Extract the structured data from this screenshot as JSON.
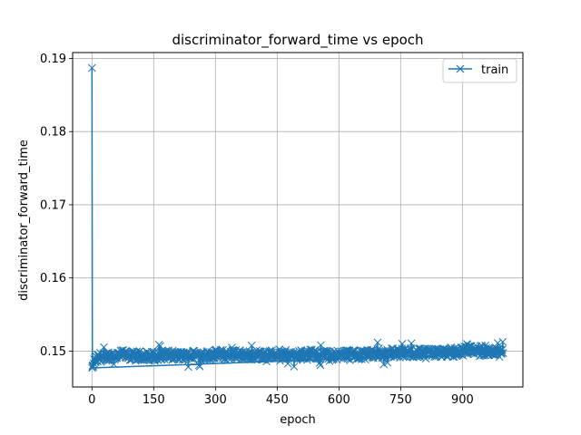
{
  "chart_data": {
    "type": "line",
    "title": "discriminator_forward_time vs epoch",
    "xlabel": "epoch",
    "ylabel": "discriminator_forward_time",
    "xlim": [
      -47,
      1047
    ],
    "ylim": [
      0.1451,
      0.1908
    ],
    "xticks": [
      0,
      150,
      300,
      450,
      600,
      750,
      900
    ],
    "yticks": [
      0.15,
      0.16,
      0.17,
      0.18,
      0.19
    ],
    "ytick_labels": [
      "0.15",
      "0.16",
      "0.17",
      "0.18",
      "0.19"
    ],
    "grid": true,
    "legend": {
      "position": "top-right",
      "entries": [
        "train"
      ]
    },
    "colors": {
      "train": "#1f77b4"
    },
    "series": [
      {
        "name": "train",
        "marker": "x",
        "x": [
          0,
          1,
          2,
          3,
          4,
          5,
          10,
          20,
          30,
          40,
          50,
          75,
          100,
          125,
          150,
          175,
          200,
          225,
          250,
          275,
          300,
          325,
          350,
          375,
          400,
          425,
          450,
          475,
          500,
          525,
          550,
          575,
          600,
          625,
          650,
          675,
          700,
          725,
          750,
          775,
          800,
          825,
          850,
          875,
          900,
          925,
          950,
          975,
          999
        ],
        "y": [
          0.1487,
          0.1477,
          0.1474,
          0.1483,
          0.1479,
          0.1485,
          0.1488,
          0.1492,
          0.1491,
          0.1494,
          0.1493,
          0.1495,
          0.1493,
          0.1494,
          0.1493,
          0.1495,
          0.1494,
          0.1493,
          0.1495,
          0.1494,
          0.1496,
          0.1495,
          0.1496,
          0.1494,
          0.1495,
          0.1494,
          0.1496,
          0.1495,
          0.1494,
          0.1496,
          0.1495,
          0.1494,
          0.1495,
          0.1496,
          0.1495,
          0.1497,
          0.1496,
          0.1498,
          0.1497,
          0.1498,
          0.1497,
          0.1498,
          0.1497,
          0.1498,
          0.15,
          0.1501,
          0.15,
          0.1499,
          0.1498
        ]
      }
    ],
    "spike": {
      "x": 0,
      "y": 0.1887
    }
  }
}
